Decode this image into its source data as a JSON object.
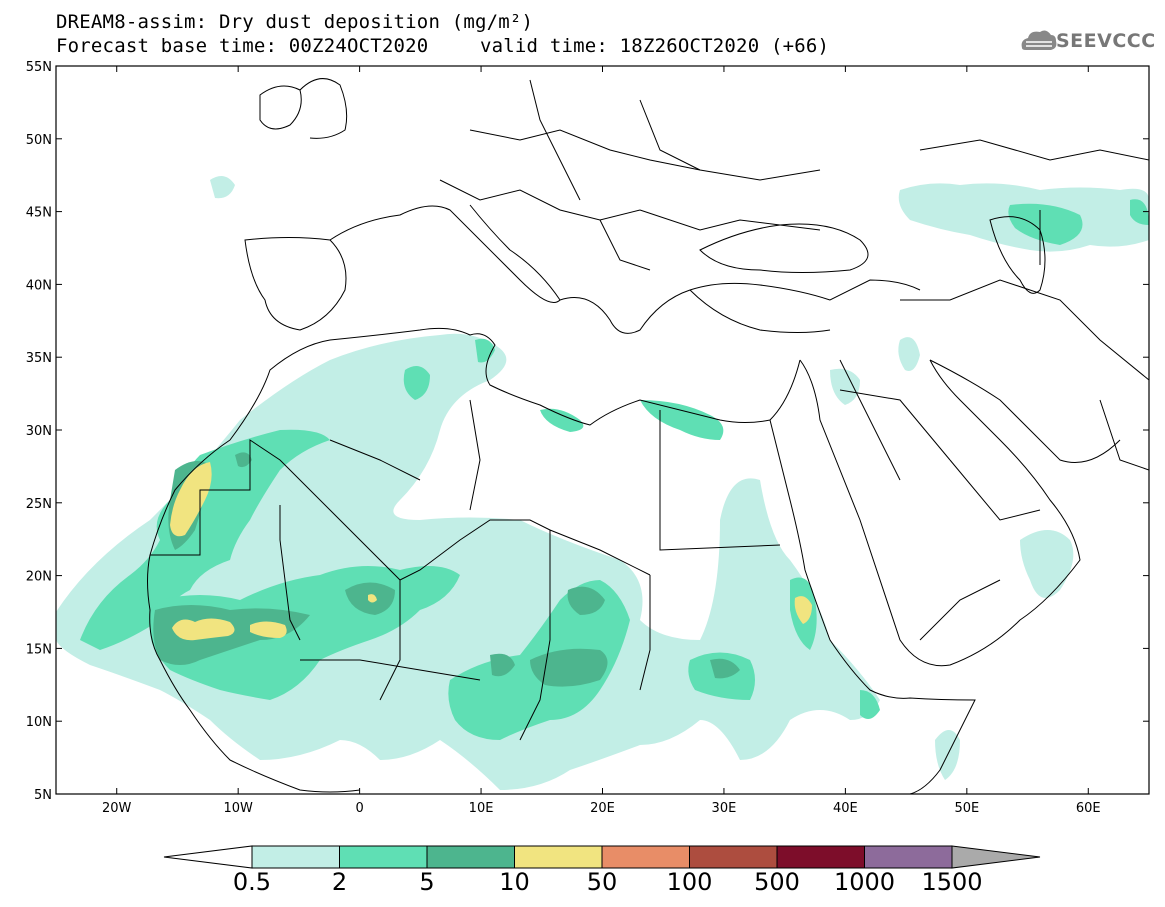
{
  "header": {
    "title_line1": "DREAM8-assim: Dry dust deposition (mg/m²)",
    "title_line2_left": "Forecast base time: 00Z24OCT2020",
    "title_line2_right": "valid time: 18Z26OCT2020 (+66)",
    "logo_text": "SEEVCCC"
  },
  "map": {
    "lon_range": [
      -25,
      65
    ],
    "lat_range": [
      5,
      55
    ],
    "lat_ticks": [
      {
        "value": 55,
        "label": "55N"
      },
      {
        "value": 50,
        "label": "50N"
      },
      {
        "value": 45,
        "label": "45N"
      },
      {
        "value": 40,
        "label": "40N"
      },
      {
        "value": 35,
        "label": "35N"
      },
      {
        "value": 30,
        "label": "30N"
      },
      {
        "value": 25,
        "label": "25N"
      },
      {
        "value": 20,
        "label": "20N"
      },
      {
        "value": 15,
        "label": "15N"
      },
      {
        "value": 10,
        "label": "10N"
      },
      {
        "value": 5,
        "label": "5N"
      }
    ],
    "lon_ticks": [
      {
        "value": -20,
        "label": "20W"
      },
      {
        "value": -10,
        "label": "10W"
      },
      {
        "value": 0,
        "label": "0"
      },
      {
        "value": 10,
        "label": "10E"
      },
      {
        "value": 20,
        "label": "20E"
      },
      {
        "value": 30,
        "label": "30E"
      },
      {
        "value": 40,
        "label": "40E"
      },
      {
        "value": 50,
        "label": "50E"
      },
      {
        "value": 60,
        "label": "60E"
      }
    ]
  },
  "colorbar": {
    "levels": [
      "0.5",
      "2",
      "5",
      "10",
      "50",
      "100",
      "500",
      "1000",
      "1500"
    ],
    "colors": [
      "#c2eee6",
      "#5fdfb4",
      "#4db58e",
      "#f1e480",
      "#e88d67",
      "#ad4d3f",
      "#7d0d2a",
      "#8d6b9b"
    ],
    "under_color": "#ffffff",
    "over_color": "#aaaaaa"
  }
}
